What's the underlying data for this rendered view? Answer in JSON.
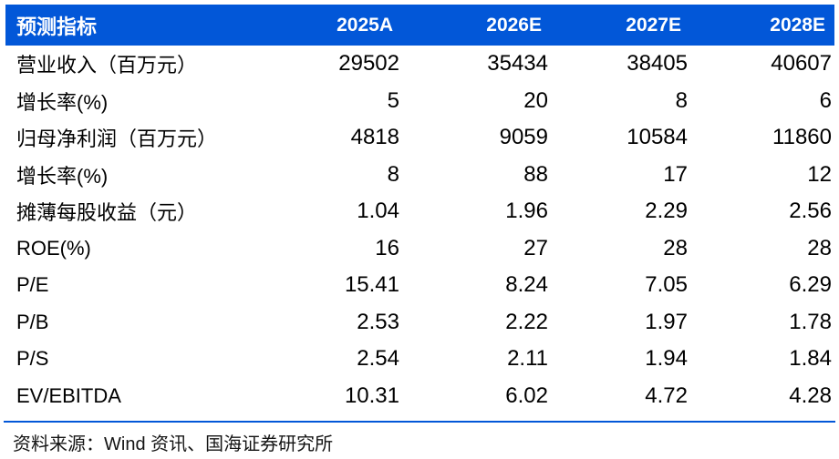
{
  "colors": {
    "header_bg": "#0257d8",
    "header_text": "#ffffff",
    "body_text": "#000000",
    "rule": "#0257d8"
  },
  "table": {
    "header": {
      "label": "预测指标",
      "years": [
        "2025A",
        "2026E",
        "2027E",
        "2028E"
      ]
    },
    "rows": [
      {
        "label": "营业收入（百万元）",
        "values": [
          "29502",
          "35434",
          "38405",
          "40607"
        ]
      },
      {
        "label": "增长率(%)",
        "values": [
          "5",
          "20",
          "8",
          "6"
        ]
      },
      {
        "label": "归母净利润（百万元）",
        "values": [
          "4818",
          "9059",
          "10584",
          "11860"
        ]
      },
      {
        "label": "增长率(%)",
        "values": [
          "8",
          "88",
          "17",
          "12"
        ]
      },
      {
        "label": "摊薄每股收益（元）",
        "values": [
          "1.04",
          "1.96",
          "2.29",
          "2.56"
        ]
      },
      {
        "label": "ROE(%)",
        "values": [
          "16",
          "27",
          "28",
          "28"
        ]
      },
      {
        "label": "P/E",
        "values": [
          "15.41",
          "8.24",
          "7.05",
          "6.29"
        ]
      },
      {
        "label": "P/B",
        "values": [
          "2.53",
          "2.22",
          "1.97",
          "1.78"
        ]
      },
      {
        "label": "P/S",
        "values": [
          "2.54",
          "2.11",
          "1.94",
          "1.84"
        ]
      },
      {
        "label": "EV/EBITDA",
        "values": [
          "10.31",
          "6.02",
          "4.72",
          "4.28"
        ]
      }
    ]
  },
  "footer": {
    "source_text": "资料来源：Wind 资讯、国海证券研究所"
  }
}
